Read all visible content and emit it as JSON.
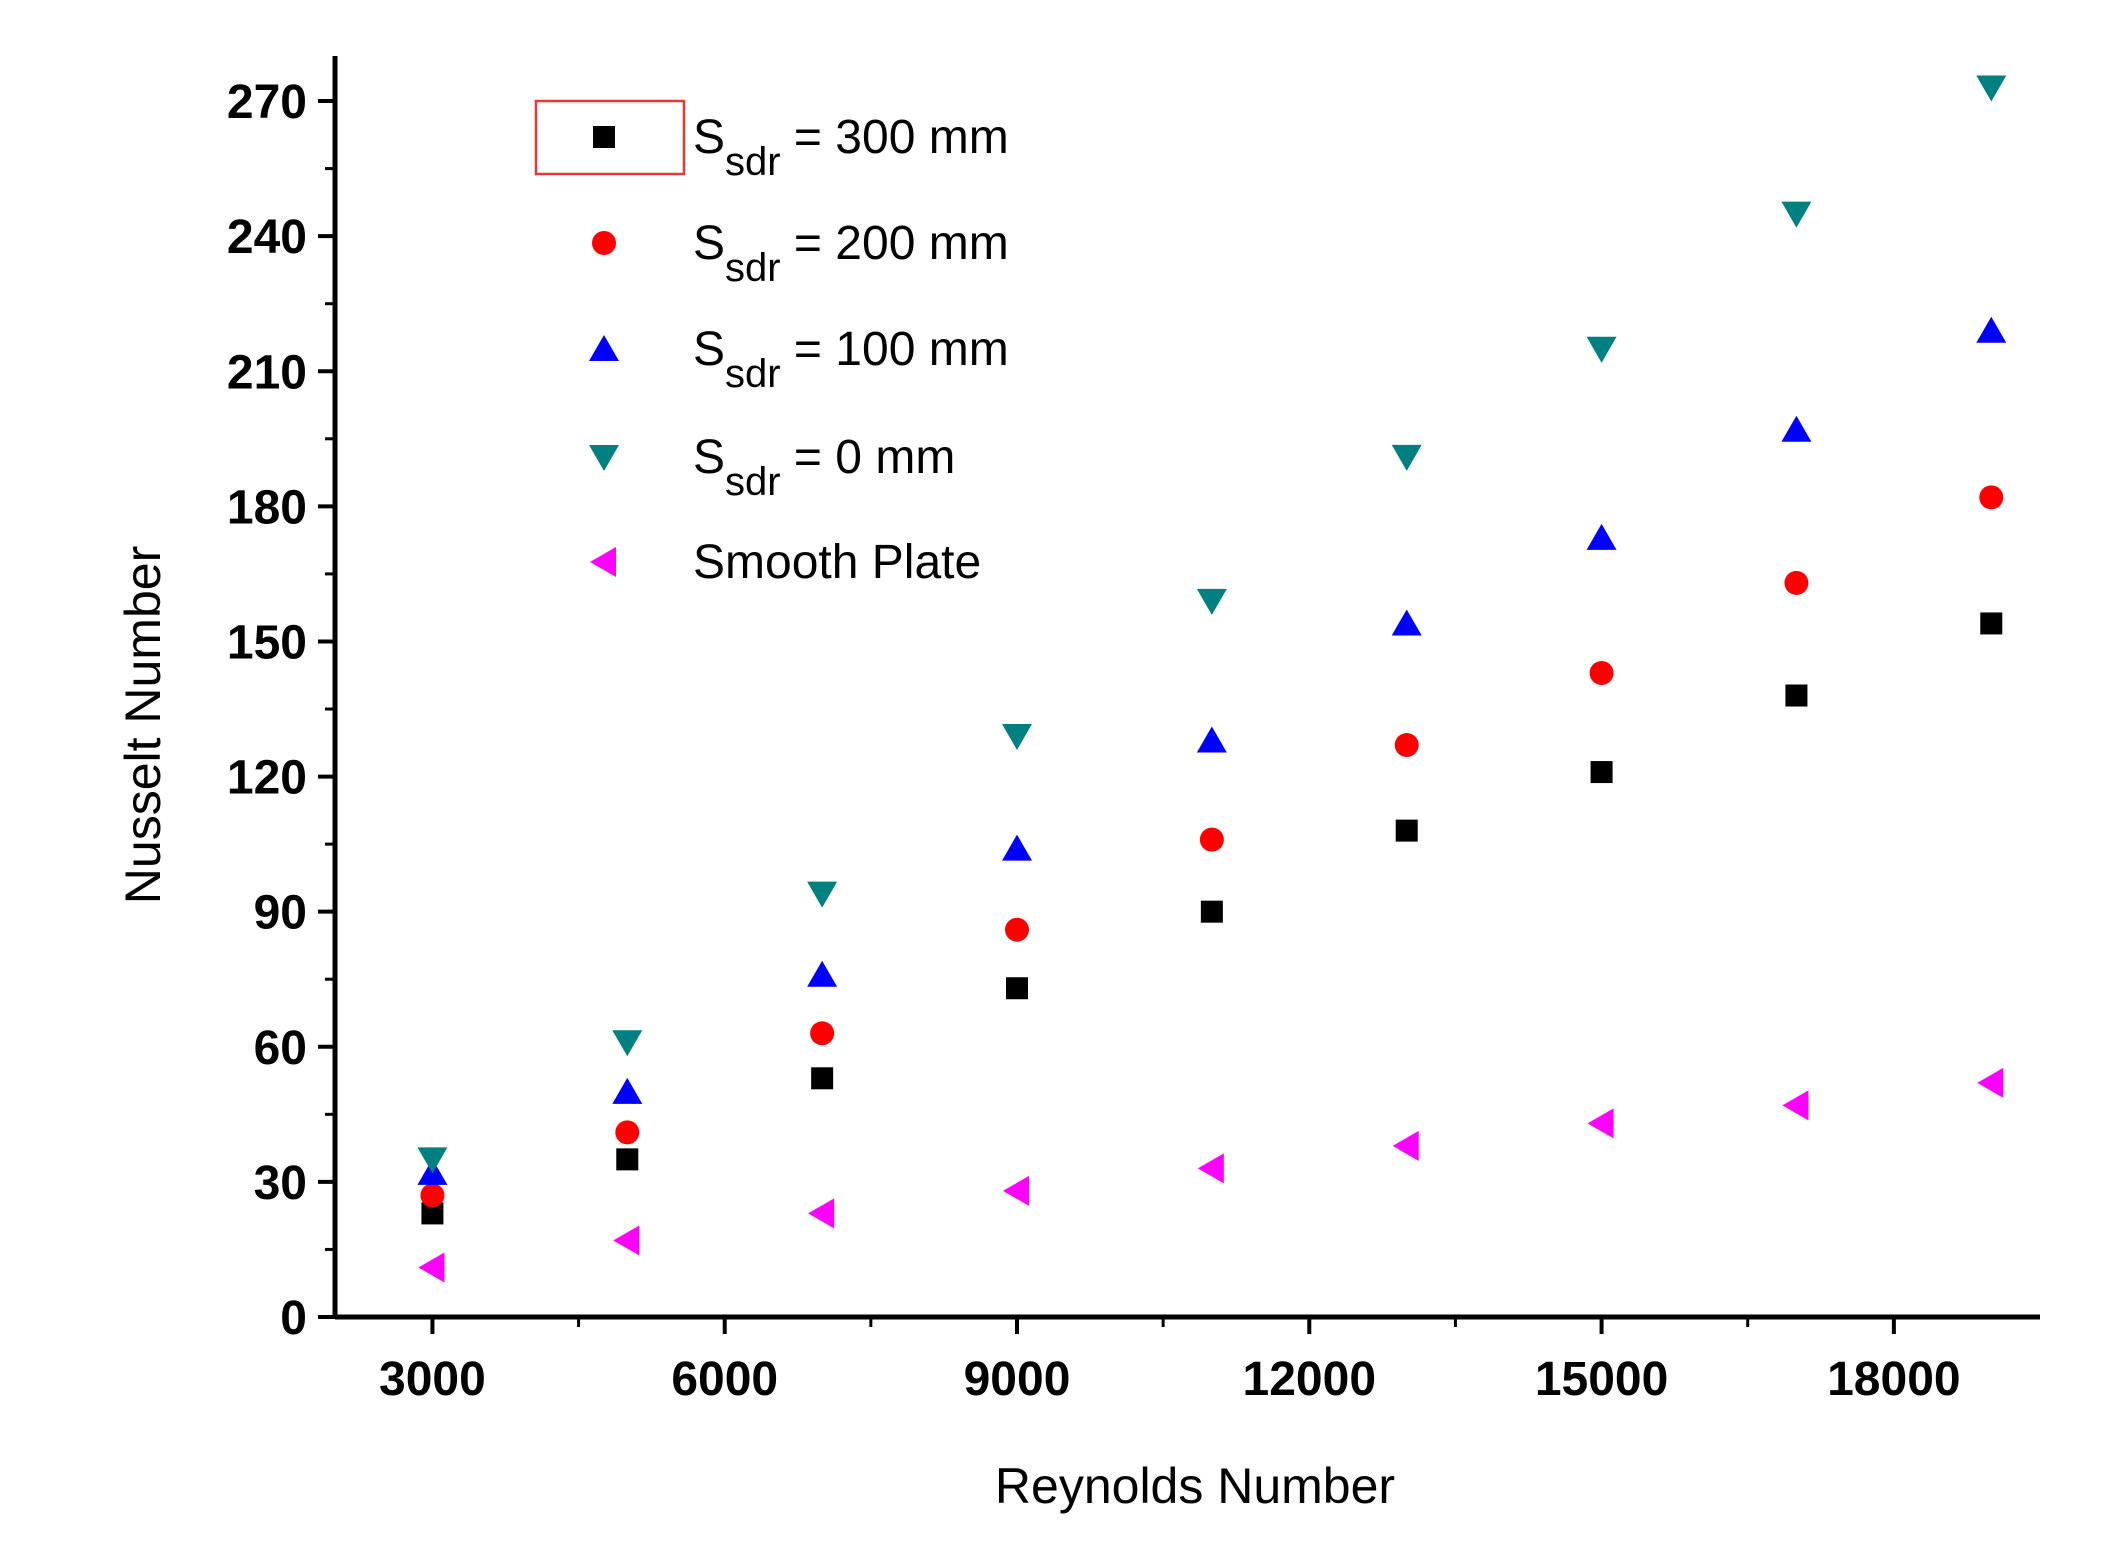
{
  "chart_data": {
    "type": "scatter",
    "title": "",
    "xlabel": "Reynolds Number",
    "ylabel": "Nusselt Number",
    "xlim": [
      2000,
      19500
    ],
    "ylim": [
      0,
      280
    ],
    "x_ticks": [
      3000,
      6000,
      9000,
      12000,
      15000,
      18000
    ],
    "y_ticks": [
      0,
      30,
      60,
      90,
      120,
      150,
      180,
      210,
      240,
      270
    ],
    "grid": false,
    "legend_position": "top-left",
    "x": [
      3000,
      5000,
      7000,
      9000,
      11000,
      13000,
      15000,
      17000,
      19000
    ],
    "series": [
      {
        "name": "300 mm",
        "legend_main": "S",
        "legend_sub": "sdr",
        "legend_rest": " = 300 mm",
        "marker": "square",
        "color": "#000000",
        "values": [
          23,
          35,
          53,
          73,
          90,
          108,
          121,
          138,
          154
        ]
      },
      {
        "name": "200 mm",
        "legend_main": "S",
        "legend_sub": "sdr",
        "legend_rest": " = 200 mm",
        "marker": "circle",
        "color": "#ff0000",
        "values": [
          27,
          41,
          63,
          86,
          106,
          127,
          143,
          163,
          182
        ]
      },
      {
        "name": "100 mm",
        "legend_main": "S",
        "legend_sub": "sdr",
        "legend_rest": " = 100 mm",
        "marker": "triangle-up",
        "color": "#0000ff",
        "values": [
          32,
          50,
          76,
          104,
          128,
          154,
          173,
          197,
          219
        ]
      },
      {
        "name": "0 mm",
        "legend_main": "S",
        "legend_sub": "sdr",
        "legend_rest": " =  0 mm",
        "marker": "triangle-down",
        "color": "#008080",
        "values": [
          35,
          61,
          94,
          129,
          159,
          191,
          215,
          245,
          273
        ]
      },
      {
        "name": "Smooth Plate",
        "legend_main": "Smooth Plate",
        "legend_sub": "",
        "legend_rest": "",
        "marker": "triangle-left",
        "color": "#ff00ff",
        "values": [
          11,
          17,
          23,
          28,
          33,
          38,
          43,
          47,
          52
        ]
      }
    ]
  }
}
